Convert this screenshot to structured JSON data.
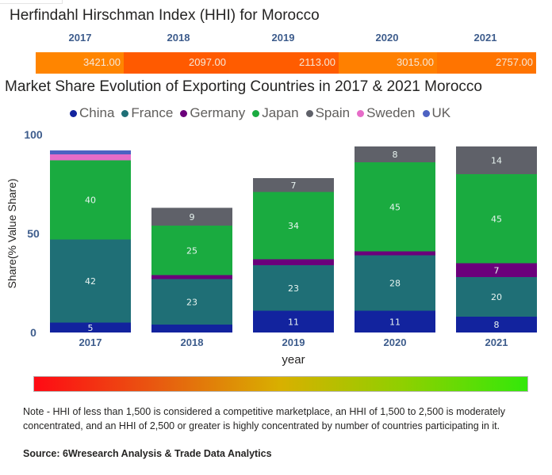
{
  "hhi": {
    "title": "Herfindahl Hirschman Index (HHI) for Morocco",
    "entries": [
      {
        "year": "2017",
        "value": "3421.00",
        "color": "#ff8500"
      },
      {
        "year": "2018",
        "value": "2097.00",
        "color": "#ff5a00"
      },
      {
        "year": "2019",
        "value": "2113.00",
        "color": "#ff5c00"
      },
      {
        "year": "2020",
        "value": "3015.00",
        "color": "#ff8000"
      },
      {
        "year": "2021",
        "value": "2757.00",
        "color": "#ff7400"
      }
    ]
  },
  "chart_data": {
    "type": "bar",
    "stacked": true,
    "title": "Market Share Evolution of Exporting Countries in 2017 & 2021 Morocco",
    "xlabel": "year",
    "ylabel": "Share(% Value Share)",
    "ylim": [
      0,
      100
    ],
    "yticks": [
      "0",
      "50",
      "100"
    ],
    "categories": [
      "2017",
      "2018",
      "2019",
      "2020",
      "2021"
    ],
    "legend_position": "top-center",
    "series": [
      {
        "name": "China",
        "color": "#12239e",
        "values": [
          5,
          4,
          11,
          11,
          8
        ],
        "labels": [
          "5",
          "",
          "11",
          "11",
          "8"
        ]
      },
      {
        "name": "France",
        "color": "#1f6f76",
        "values": [
          42,
          23,
          23,
          28,
          20
        ],
        "labels": [
          "42",
          "23",
          "23",
          "28",
          "20"
        ]
      },
      {
        "name": "Germany",
        "color": "#6b007b",
        "values": [
          0,
          2,
          3,
          2,
          7
        ],
        "labels": [
          "",
          "",
          "",
          "",
          "7"
        ]
      },
      {
        "name": "Japan",
        "color": "#1aab40",
        "values": [
          40,
          25,
          34,
          45,
          45
        ],
        "labels": [
          "40",
          "25",
          "34",
          "45",
          "45"
        ]
      },
      {
        "name": "Spain",
        "color": "#5f6169",
        "values": [
          0,
          9,
          7,
          8,
          14
        ],
        "labels": [
          "",
          "9",
          "7",
          "8",
          "14"
        ]
      },
      {
        "name": "Sweden",
        "color": "#e66cc8",
        "values": [
          3,
          0,
          0,
          0,
          0
        ],
        "labels": [
          "",
          "",
          "",
          "",
          ""
        ]
      },
      {
        "name": "UK",
        "color": "#4d62c2",
        "values": [
          2,
          0,
          0,
          0,
          0
        ],
        "labels": [
          "",
          "",
          "",
          "",
          ""
        ]
      }
    ]
  },
  "colorscale": {
    "from": "red",
    "to": "green"
  },
  "footer": {
    "note": "Note - HHI of less than 1,500 is considered a competitive marketplace, an HHI of 1,500 to 2,500 is moderately concentrated, and an HHI of 2,500 or greater is highly concentrated by number of countries participating in it.",
    "source": "Source: 6Wresearch Analysis & Trade Data Analytics"
  }
}
